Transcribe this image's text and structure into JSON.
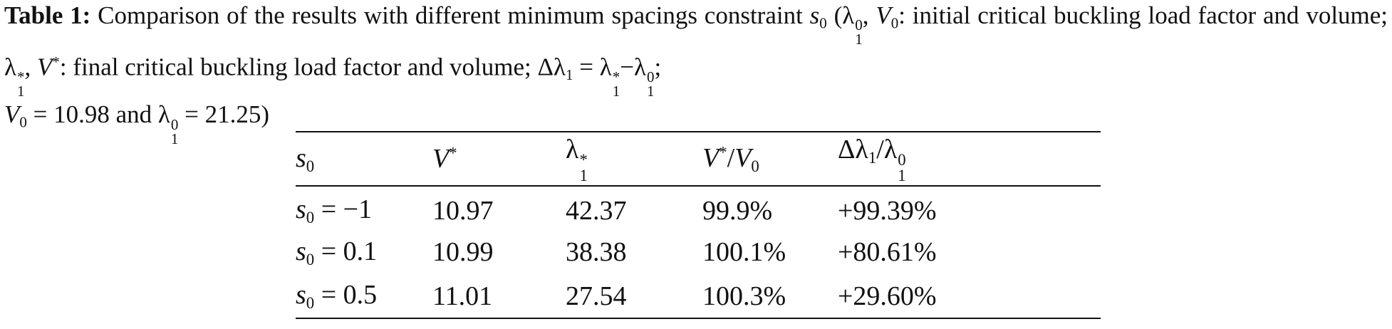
{
  "caption": {
    "label": "Table 1:",
    "parts": [
      "Comparison of the results with different minimum spacings constraint ",
      "s",
      "0",
      " (",
      "λ",
      "1",
      "0",
      ", ",
      "V",
      "0",
      ": initial critical buckling load factor and volume; ",
      "λ",
      "1",
      "*",
      ", ",
      "V",
      "*",
      ": final critical buckling load factor and volume; ",
      "Δλ",
      "1",
      " = ",
      "λ",
      "1",
      "*",
      "−",
      "λ",
      "1",
      "0",
      "; ",
      "V",
      "0",
      " = 10.98 and ",
      "λ",
      "1",
      "0",
      " = 21.25)"
    ]
  },
  "table": {
    "header": [
      [
        "s",
        "0"
      ],
      [
        "V",
        "*"
      ],
      [
        "λ",
        "1",
        "*"
      ],
      [
        "V",
        "*",
        "/",
        "V",
        "0"
      ],
      [
        "Δλ",
        "1",
        "/",
        "λ",
        "1",
        "0"
      ]
    ],
    "rows": [
      [
        [
          "s",
          "0",
          " = −1"
        ],
        "10.97",
        "42.37",
        "99.9%",
        "+99.39%"
      ],
      [
        [
          "s",
          "0",
          " = 0.1"
        ],
        "10.99",
        "38.38",
        "100.1%",
        "+80.61%"
      ],
      [
        [
          "s",
          "0",
          " = 0.5"
        ],
        "11.01",
        "27.54",
        "100.3%",
        "+29.60%"
      ]
    ]
  }
}
